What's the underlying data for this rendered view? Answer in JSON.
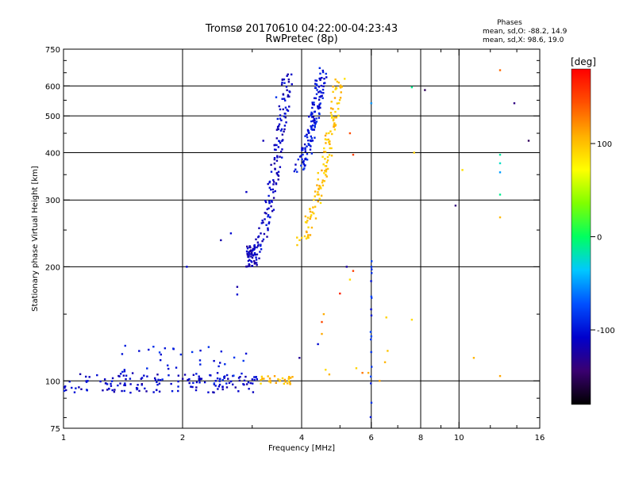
{
  "chart_data": {
    "type": "scatter",
    "title": "Tromsø 20170610 04:22:00-04:23:43",
    "subtitle": "RwPretec (8p)",
    "xlabel": "Frequency [MHz]",
    "ylabel": "Stationary phase Virtual Height [km]",
    "x_scale": "log",
    "y_scale": "log",
    "xlim": [
      1,
      16
    ],
    "ylim": [
      75,
      750
    ],
    "x_ticks": [
      1,
      2,
      4,
      6,
      8,
      10,
      16
    ],
    "x_tick_labels": [
      "1",
      "2",
      "4",
      "6",
      "8",
      "10",
      "16"
    ],
    "x_grid_lines": [
      2,
      4,
      6,
      8,
      10
    ],
    "y_ticks": [
      75,
      100,
      200,
      300,
      400,
      500,
      600,
      750
    ],
    "y_tick_labels": [
      "75",
      "100",
      "200",
      "300",
      "400",
      "500",
      "600",
      "750"
    ],
    "y_grid_lines": [
      100,
      200,
      300,
      400,
      500,
      600
    ],
    "grid": true,
    "stats_header": "Phases",
    "stats_o": "mean, sd,O: -88.2, 14.9",
    "stats_x": "mean, sd,X:  98.6, 19.0",
    "colorbar": {
      "label": "[deg]",
      "range": [
        -180,
        180
      ],
      "tick_values": [
        100,
        0,
        -100
      ],
      "tick_labels": [
        "100",
        "0",
        "-100"
      ]
    },
    "traces": [
      {
        "component": "lower-layer",
        "phase": -110,
        "x_range": [
          1.0,
          3.1
        ],
        "y_range": [
          93,
          105
        ],
        "points": 150
      },
      {
        "component": "lower-layer-scatter",
        "phase": -95,
        "x_range": [
          1.4,
          2.9
        ],
        "y_range": [
          98,
          125
        ],
        "points": 45
      },
      {
        "component": "lower-layer-yellow",
        "phase": 100,
        "x_range": [
          3.1,
          3.8
        ],
        "y_range": [
          98,
          103
        ],
        "points": 30
      },
      {
        "component": "cusp-trace",
        "phase": -115,
        "x_range": [
          2.9,
          3.1
        ],
        "y_range": [
          200,
          230
        ],
        "points": 50
      },
      {
        "component": "o-trace",
        "phase": -110,
        "x_range": [
          3.0,
          3.7
        ],
        "y_range": [
          210,
          650
        ],
        "points": 150
      },
      {
        "component": "o-trace-upper",
        "phase": -100,
        "x_range": [
          3.9,
          4.5
        ],
        "y_range": [
          360,
          650
        ],
        "points": 140
      },
      {
        "component": "x-trace",
        "phase": 100,
        "x_range": [
          3.9,
          5.0
        ],
        "y_range": [
          230,
          630
        ],
        "points": 130
      },
      {
        "component": "vertical-line",
        "phase": -90,
        "x": 6.0,
        "y_range": [
          80,
          210
        ],
        "points": 18
      }
    ],
    "sparse_points": [
      {
        "x": 2.05,
        "y": 200,
        "phase": -90
      },
      {
        "x": 2.75,
        "y": 177,
        "phase": -110
      },
      {
        "x": 2.75,
        "y": 169,
        "phase": -100
      },
      {
        "x": 2.9,
        "y": 315,
        "phase": -110
      },
      {
        "x": 3.2,
        "y": 430,
        "phase": -130
      },
      {
        "x": 2.5,
        "y": 235,
        "phase": -120
      },
      {
        "x": 2.65,
        "y": 245,
        "phase": -100
      },
      {
        "x": 3.05,
        "y": 205,
        "phase": -110
      },
      {
        "x": 3.45,
        "y": 560,
        "phase": -100
      },
      {
        "x": 3.95,
        "y": 115,
        "phase": -140
      },
      {
        "x": 4.5,
        "y": 143,
        "phase": 150
      },
      {
        "x": 4.55,
        "y": 150,
        "phase": 100
      },
      {
        "x": 4.5,
        "y": 133,
        "phase": 120
      },
      {
        "x": 4.4,
        "y": 125,
        "phase": -90
      },
      {
        "x": 4.6,
        "y": 107,
        "phase": 100
      },
      {
        "x": 4.7,
        "y": 104,
        "phase": 100
      },
      {
        "x": 5.0,
        "y": 170,
        "phase": 150
      },
      {
        "x": 5.3,
        "y": 185,
        "phase": 100
      },
      {
        "x": 5.2,
        "y": 200,
        "phase": -130
      },
      {
        "x": 5.4,
        "y": 195,
        "phase": 150
      },
      {
        "x": 5.4,
        "y": 395,
        "phase": 160
      },
      {
        "x": 5.3,
        "y": 450,
        "phase": 150
      },
      {
        "x": 5.5,
        "y": 108,
        "phase": 100
      },
      {
        "x": 5.7,
        "y": 105,
        "phase": 120
      },
      {
        "x": 6.0,
        "y": 540,
        "phase": -40
      },
      {
        "x": 5.9,
        "y": 105,
        "phase": 100
      },
      {
        "x": 6.3,
        "y": 100,
        "phase": 100
      },
      {
        "x": 6.5,
        "y": 112,
        "phase": 110
      },
      {
        "x": 6.6,
        "y": 120,
        "phase": 110
      },
      {
        "x": 6.55,
        "y": 147,
        "phase": 100
      },
      {
        "x": 7.6,
        "y": 145,
        "phase": 100
      },
      {
        "x": 7.7,
        "y": 400,
        "phase": 90
      },
      {
        "x": 7.6,
        "y": 595,
        "phase": -20
      },
      {
        "x": 8.2,
        "y": 585,
        "phase": -140
      },
      {
        "x": 9.8,
        "y": 290,
        "phase": -150
      },
      {
        "x": 10.2,
        "y": 360,
        "phase": 80
      },
      {
        "x": 10.9,
        "y": 115,
        "phase": 110
      },
      {
        "x": 12.7,
        "y": 660,
        "phase": 130
      },
      {
        "x": 12.7,
        "y": 395,
        "phase": -30
      },
      {
        "x": 12.7,
        "y": 375,
        "phase": -10
      },
      {
        "x": 12.7,
        "y": 355,
        "phase": -40
      },
      {
        "x": 12.7,
        "y": 310,
        "phase": -10
      },
      {
        "x": 12.7,
        "y": 270,
        "phase": 90
      },
      {
        "x": 12.7,
        "y": 103,
        "phase": 100
      },
      {
        "x": 13.8,
        "y": 540,
        "phase": -150
      },
      {
        "x": 15.0,
        "y": 430,
        "phase": -150
      }
    ]
  }
}
